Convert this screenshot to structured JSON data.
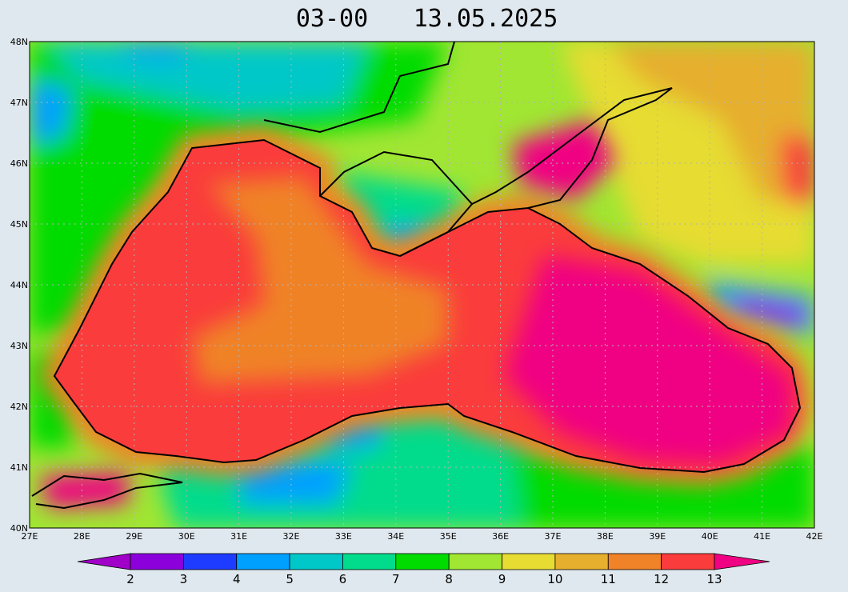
{
  "title": {
    "time": "03-00",
    "date": "13.05.2025"
  },
  "map": {
    "lon_labels": [
      "27E",
      "28E",
      "29E",
      "30E",
      "31E",
      "32E",
      "33E",
      "34E",
      "35E",
      "36E",
      "37E",
      "38E",
      "39E",
      "40E",
      "41E",
      "42E"
    ],
    "lat_labels": [
      "48N",
      "47N",
      "46N",
      "45N",
      "44N",
      "43N",
      "42N",
      "41N",
      "40N"
    ]
  },
  "colorbar": {
    "levels": [
      2,
      3,
      4,
      5,
      6,
      7,
      8,
      9,
      10,
      11,
      12,
      13
    ],
    "colors": [
      "#a000c8",
      "#8c00dc",
      "#1e3cff",
      "#00a0ff",
      "#00c8c8",
      "#00dc8c",
      "#00dc00",
      "#a0e632",
      "#e6dc32",
      "#e6af2d",
      "#f08228",
      "#fa3c3c",
      "#f00082"
    ]
  }
}
